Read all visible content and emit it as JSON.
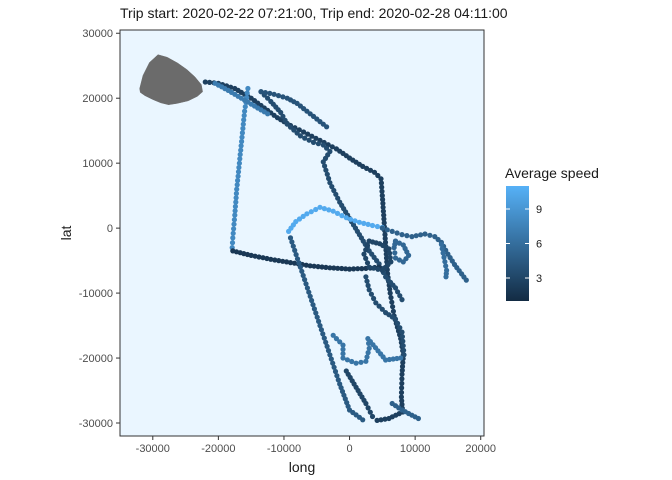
{
  "chart_data": {
    "type": "scatter",
    "title": "Trip start: 2020-02-22 07:21:00, Trip end: 2020-02-28 04:11:00",
    "xlabel": "long",
    "ylabel": "lat",
    "xlim": [
      -35000,
      20500
    ],
    "ylim": [
      -32000,
      30500
    ],
    "x_ticks": [
      -30000,
      -20000,
      -10000,
      0,
      10000,
      20000
    ],
    "x_tick_labels": [
      "-30000",
      "-20000",
      "-10000",
      "0",
      "10000",
      "20000"
    ],
    "y_ticks": [
      30000,
      20000,
      10000,
      0,
      -10000,
      -20000,
      -30000
    ],
    "y_tick_labels": [
      "30000",
      "20000",
      "10000",
      "0",
      "-10000",
      "-20000",
      "-30000"
    ],
    "panel_background": "#eaf6ff",
    "land_color": "#6b6b6b",
    "land_polygon": [
      [
        -32000,
        21500
      ],
      [
        -31500,
        23500
      ],
      [
        -30500,
        25500
      ],
      [
        -29200,
        26700
      ],
      [
        -27800,
        26300
      ],
      [
        -26200,
        25400
      ],
      [
        -24800,
        24400
      ],
      [
        -23600,
        23300
      ],
      [
        -22600,
        22100
      ],
      [
        -22400,
        21000
      ],
      [
        -23200,
        20300
      ],
      [
        -24600,
        19600
      ],
      [
        -26300,
        19200
      ],
      [
        -27600,
        19000
      ],
      [
        -28800,
        19300
      ],
      [
        -30000,
        19800
      ],
      [
        -31200,
        20400
      ],
      [
        -31900,
        20900
      ]
    ],
    "colorbar": {
      "title": "Average speed",
      "min": 1,
      "max": 11,
      "ticks": [
        3,
        6,
        9
      ],
      "tick_labels": [
        "3",
        "6",
        "9"
      ],
      "low_color": "#132b43",
      "high_color": "#56b1f7"
    },
    "tracks": [
      {
        "speed": 2.5,
        "path": [
          [
            -22000,
            22500
          ],
          [
            -20000,
            22300
          ],
          [
            -17500,
            21500
          ],
          [
            -15000,
            20000
          ],
          [
            -13000,
            18500
          ],
          [
            -11000,
            17000
          ],
          [
            -9000,
            15800
          ],
          [
            -7000,
            14800
          ],
          [
            -4500,
            13500
          ],
          [
            -2000,
            12200
          ],
          [
            0,
            10800
          ],
          [
            2000,
            9500
          ],
          [
            3800,
            8600
          ],
          [
            4800,
            7600
          ],
          [
            5000,
            5000
          ],
          [
            5200,
            2000
          ],
          [
            5400,
            -1000
          ],
          [
            5600,
            -4000
          ],
          [
            5800,
            -7000
          ],
          [
            6200,
            -10000
          ],
          [
            6800,
            -13500
          ],
          [
            7800,
            -17000
          ],
          [
            8200,
            -19500
          ],
          [
            8000,
            -22500
          ],
          [
            7900,
            -26000
          ],
          [
            8100,
            -28300
          ],
          [
            6000,
            -29300
          ],
          [
            4200,
            -29600
          ]
        ]
      },
      {
        "speed": 3.5,
        "path": [
          [
            -13500,
            21000
          ],
          [
            -12000,
            19500
          ],
          [
            -10500,
            17800
          ],
          [
            -9500,
            16000
          ],
          [
            -7500,
            14200
          ],
          [
            -5500,
            13200
          ],
          [
            -4000,
            12800
          ],
          [
            -3000,
            11800
          ],
          [
            -4000,
            10200
          ],
          [
            -3000,
            7000
          ],
          [
            -1500,
            4000
          ],
          [
            0,
            1500
          ],
          [
            1500,
            -1000
          ],
          [
            3000,
            -3500
          ],
          [
            4500,
            -5500
          ],
          [
            5500,
            -7500
          ],
          [
            7000,
            -9200
          ],
          [
            8000,
            -11000
          ]
        ]
      },
      {
        "speed": 8.0,
        "path": [
          [
            -15500,
            21500
          ],
          [
            -16000,
            18000
          ],
          [
            -16400,
            14000
          ],
          [
            -16800,
            10000
          ],
          [
            -17200,
            6000
          ],
          [
            -17500,
            2000
          ],
          [
            -17800,
            -1500
          ],
          [
            -17900,
            -3000
          ]
        ]
      },
      {
        "speed": 2.0,
        "path": [
          [
            -17800,
            -3500
          ],
          [
            -15000,
            -4200
          ],
          [
            -12000,
            -4800
          ],
          [
            -9000,
            -5300
          ],
          [
            -6000,
            -5800
          ],
          [
            -3000,
            -6100
          ],
          [
            0,
            -6300
          ],
          [
            2500,
            -6200
          ],
          [
            4500,
            -6000
          ]
        ]
      },
      {
        "speed": 4.5,
        "path": [
          [
            -9000,
            -1500
          ],
          [
            -7500,
            -6000
          ],
          [
            -6000,
            -10500
          ],
          [
            -4500,
            -15000
          ],
          [
            -3000,
            -19500
          ],
          [
            -1500,
            -24000
          ],
          [
            0,
            -28000
          ],
          [
            2000,
            -29500
          ]
        ]
      },
      {
        "speed": 10.5,
        "path": [
          [
            -9300,
            -500
          ],
          [
            -8200,
            1000
          ],
          [
            -6500,
            2200
          ],
          [
            -4500,
            3200
          ],
          [
            -2500,
            2600
          ],
          [
            -500,
            1600
          ],
          [
            1500,
            900
          ],
          [
            3500,
            400
          ],
          [
            5000,
            100
          ]
        ]
      },
      {
        "speed": 5.0,
        "path": [
          [
            5000,
            0
          ],
          [
            6500,
            -500
          ],
          [
            8000,
            -1000
          ],
          [
            9500,
            -1300
          ],
          [
            11500,
            -900
          ],
          [
            13000,
            -1300
          ],
          [
            14000,
            -2200
          ],
          [
            15000,
            -4000
          ],
          [
            16000,
            -5600
          ],
          [
            17800,
            -8000
          ]
        ]
      },
      {
        "speed": 6.0,
        "path": [
          [
            14000,
            -2500
          ],
          [
            14400,
            -4500
          ],
          [
            14800,
            -6500
          ],
          [
            14700,
            -7500
          ]
        ]
      },
      {
        "speed": 3.0,
        "path": [
          [
            3000,
            -2000
          ],
          [
            2200,
            -4000
          ],
          [
            3000,
            -6000
          ],
          [
            5000,
            -6500
          ],
          [
            6300,
            -5200
          ],
          [
            6000,
            -3200
          ],
          [
            4600,
            -2400
          ],
          [
            3000,
            -2000
          ]
        ]
      },
      {
        "speed": 5.5,
        "path": [
          [
            7000,
            -2000
          ],
          [
            8200,
            -2600
          ],
          [
            9000,
            -4200
          ],
          [
            8200,
            -5200
          ],
          [
            7000,
            -4600
          ],
          [
            6800,
            -3000
          ],
          [
            7000,
            -2000
          ]
        ]
      },
      {
        "speed": 3.5,
        "path": [
          [
            2500,
            -7500
          ],
          [
            3000,
            -9500
          ],
          [
            4000,
            -11500
          ],
          [
            5500,
            -13000
          ],
          [
            7000,
            -14000
          ],
          [
            8000,
            -16000
          ],
          [
            8300,
            -19500
          ]
        ]
      },
      {
        "speed": 6.5,
        "path": [
          [
            -2500,
            -16500
          ],
          [
            -1000,
            -18000
          ],
          [
            -1000,
            -20000
          ],
          [
            1000,
            -20800
          ],
          [
            2500,
            -20500
          ],
          [
            3000,
            -18500
          ],
          [
            2800,
            -17000
          ],
          [
            5500,
            -20300
          ],
          [
            7800,
            -20000
          ]
        ]
      },
      {
        "speed": 3.0,
        "path": [
          [
            -500,
            -22000
          ],
          [
            1000,
            -24500
          ],
          [
            2500,
            -27000
          ],
          [
            3500,
            -29000
          ]
        ]
      },
      {
        "speed": 5.0,
        "path": [
          [
            6500,
            -27000
          ],
          [
            8000,
            -28000
          ],
          [
            9500,
            -28800
          ],
          [
            10500,
            -29300
          ]
        ]
      },
      {
        "speed": 4.0,
        "path": [
          [
            -13500,
            21000
          ],
          [
            -11500,
            20600
          ],
          [
            -9500,
            20000
          ],
          [
            -8000,
            19200
          ],
          [
            -6500,
            18000
          ],
          [
            -5000,
            16800
          ],
          [
            -3500,
            15600
          ]
        ]
      },
      {
        "speed": 7.0,
        "path": [
          [
            -20500,
            22300
          ],
          [
            -18500,
            21200
          ],
          [
            -16500,
            20000
          ],
          [
            -14500,
            18800
          ],
          [
            -12500,
            17600
          ]
        ]
      }
    ]
  }
}
